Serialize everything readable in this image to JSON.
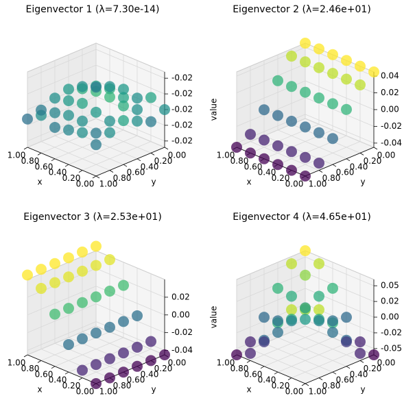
{
  "chart_data": [
    {
      "type": "scatter3d",
      "title": "Eigenvector 1 (λ=7.30e-14)",
      "xlabel": "x",
      "ylabel": "y",
      "zlabel": "value",
      "colormap": "viridis",
      "x": [
        0,
        0,
        0,
        0,
        0,
        0,
        0.2,
        0.2,
        0.2,
        0.2,
        0.2,
        0.2,
        0.4,
        0.4,
        0.4,
        0.4,
        0.4,
        0.4,
        0.6,
        0.6,
        0.6,
        0.6,
        0.6,
        0.6,
        0.8,
        0.8,
        0.8,
        0.8,
        0.8,
        0.8,
        1,
        1,
        1,
        1,
        1,
        1
      ],
      "y": [
        0,
        0.2,
        0.4,
        0.6,
        0.8,
        1,
        0,
        0.2,
        0.4,
        0.6,
        0.8,
        1,
        0,
        0.2,
        0.4,
        0.6,
        0.8,
        1,
        0,
        0.2,
        0.4,
        0.6,
        0.8,
        1,
        0,
        0.2,
        0.4,
        0.6,
        0.8,
        1,
        0,
        0.2,
        0.4,
        0.6,
        0.8,
        1
      ],
      "z": [
        -0.02236,
        -0.022362,
        -0.02236,
        -0.022358,
        -0.02236,
        -0.022362,
        -0.022358,
        -0.02236,
        -0.022357,
        -0.02236,
        -0.022362,
        -0.02236,
        -0.02236,
        -0.022358,
        -0.022356,
        -0.022359,
        -0.02236,
        -0.022361,
        -0.022359,
        -0.022357,
        -0.022356,
        -0.022358,
        -0.02236,
        -0.022362,
        -0.02236,
        -0.022358,
        -0.022357,
        -0.022359,
        -0.022361,
        -0.02236,
        -0.022362,
        -0.02236,
        -0.022359,
        -0.02236,
        -0.022362,
        -0.022363
      ],
      "xlim": [
        0,
        1
      ],
      "ylim": [
        0,
        1
      ],
      "zlim": [
        -0.022372,
        -0.022348
      ],
      "xticks": [
        {
          "value": 0,
          "label": "0.00"
        },
        {
          "value": 0.2,
          "label": "0.20"
        },
        {
          "value": 0.4,
          "label": "0.40"
        },
        {
          "value": 0.6,
          "label": "0.60"
        },
        {
          "value": 0.8,
          "label": "0.80"
        },
        {
          "value": 1,
          "label": "1.00"
        }
      ],
      "yticks": [
        {
          "value": 0,
          "label": "0.00"
        },
        {
          "value": 0.2,
          "label": "0.20"
        },
        {
          "value": 0.4,
          "label": "0.40"
        },
        {
          "value": 0.6,
          "label": "0.60"
        },
        {
          "value": 0.8,
          "label": "0.80"
        },
        {
          "value": 1,
          "label": "1.00"
        }
      ],
      "zticks": [
        {
          "value": -0.02237,
          "label": "-0.02"
        },
        {
          "value": -0.022365,
          "label": "-0.02"
        },
        {
          "value": -0.02236,
          "label": "-0.02"
        },
        {
          "value": -0.022355,
          "label": "-0.02"
        },
        {
          "value": -0.02235,
          "label": "-0.02"
        }
      ]
    },
    {
      "type": "scatter3d",
      "title": "Eigenvector 2 (λ=2.46e+01)",
      "xlabel": "x",
      "ylabel": "y",
      "colormap": "viridis",
      "x": [
        0,
        0,
        0,
        0,
        0,
        0,
        0.2,
        0.2,
        0.2,
        0.2,
        0.2,
        0.2,
        0.4,
        0.4,
        0.4,
        0.4,
        0.4,
        0.4,
        0.6,
        0.6,
        0.6,
        0.6,
        0.6,
        0.6,
        0.8,
        0.8,
        0.8,
        0.8,
        0.8,
        0.8,
        1,
        1,
        1,
        1,
        1,
        1
      ],
      "y": [
        0,
        0.2,
        0.4,
        0.6,
        0.8,
        1,
        0,
        0.2,
        0.4,
        0.6,
        0.8,
        1,
        0,
        0.2,
        0.4,
        0.6,
        0.8,
        1,
        0,
        0.2,
        0.4,
        0.6,
        0.8,
        1,
        0,
        0.2,
        0.4,
        0.6,
        0.8,
        1,
        0,
        0.2,
        0.4,
        0.6,
        0.8,
        1
      ],
      "z": [
        0.045,
        0.0364,
        0.0139,
        -0.0139,
        -0.0364,
        -0.045,
        0.045,
        0.0364,
        0.0139,
        -0.0139,
        -0.0364,
        -0.045,
        0.045,
        0.0364,
        0.0139,
        -0.0139,
        -0.0364,
        -0.045,
        0.045,
        0.0364,
        0.0139,
        -0.0139,
        -0.0364,
        -0.045,
        0.045,
        0.0364,
        0.0139,
        -0.0139,
        -0.0364,
        -0.045,
        0.045,
        0.0364,
        0.0139,
        -0.0139,
        -0.0364,
        -0.045
      ],
      "xlim": [
        0,
        1
      ],
      "ylim": [
        0,
        1
      ],
      "zlim": [
        -0.045,
        0.045
      ],
      "xticks": [
        {
          "value": 0,
          "label": "0.00"
        },
        {
          "value": 0.2,
          "label": "0.20"
        },
        {
          "value": 0.4,
          "label": "0.40"
        },
        {
          "value": 0.6,
          "label": "0.60"
        },
        {
          "value": 0.8,
          "label": "0.80"
        },
        {
          "value": 1,
          "label": "1.00"
        }
      ],
      "yticks": [
        {
          "value": 0,
          "label": "0.00"
        },
        {
          "value": 0.2,
          "label": "0.20"
        },
        {
          "value": 0.4,
          "label": "0.40"
        },
        {
          "value": 0.6,
          "label": "0.60"
        },
        {
          "value": 0.8,
          "label": "0.80"
        },
        {
          "value": 1,
          "label": "1.00"
        }
      ],
      "zticks": [
        {
          "value": -0.04,
          "label": "-0.04"
        },
        {
          "value": -0.02,
          "label": "-0.02"
        },
        {
          "value": 0,
          "label": "0.00"
        },
        {
          "value": 0.02,
          "label": "0.02"
        },
        {
          "value": 0.04,
          "label": "0.04"
        }
      ]
    },
    {
      "type": "scatter3d",
      "title": "Eigenvector 3 (λ=2.53e+01)",
      "xlabel": "x",
      "ylabel": "y",
      "zlabel": "value",
      "colormap": "viridis",
      "x": [
        0,
        0,
        0,
        0,
        0,
        0,
        0.2,
        0.2,
        0.2,
        0.2,
        0.2,
        0.2,
        0.4,
        0.4,
        0.4,
        0.4,
        0.4,
        0.4,
        0.6,
        0.6,
        0.6,
        0.6,
        0.6,
        0.6,
        0.8,
        0.8,
        0.8,
        0.8,
        0.8,
        0.8,
        1,
        1,
        1,
        1,
        1,
        1
      ],
      "y": [
        0,
        0.2,
        0.4,
        0.6,
        0.8,
        1,
        0,
        0.2,
        0.4,
        0.6,
        0.8,
        1,
        0,
        0.2,
        0.4,
        0.6,
        0.8,
        1,
        0,
        0.2,
        0.4,
        0.6,
        0.8,
        1,
        0,
        0.2,
        0.4,
        0.6,
        0.8,
        1,
        0,
        0.2,
        0.4,
        0.6,
        0.8,
        1
      ],
      "z": [
        -0.045,
        -0.045,
        -0.045,
        -0.045,
        -0.045,
        -0.045,
        -0.0364,
        -0.0364,
        -0.0364,
        -0.0364,
        -0.0364,
        -0.0364,
        -0.0139,
        -0.0139,
        -0.0139,
        -0.0139,
        -0.0139,
        -0.0139,
        0.0139,
        0.0139,
        0.0139,
        0.0139,
        0.0139,
        0.0139,
        0.0364,
        0.0364,
        0.0364,
        0.0364,
        0.0364,
        0.0364,
        0.045,
        0.045,
        0.045,
        0.045,
        0.045,
        0.045
      ],
      "xlim": [
        0,
        1
      ],
      "ylim": [
        0,
        1
      ],
      "zlim": [
        -0.045,
        0.04
      ],
      "xticks": [
        {
          "value": 0,
          "label": "0.00"
        },
        {
          "value": 0.2,
          "label": "0.20"
        },
        {
          "value": 0.4,
          "label": "0.40"
        },
        {
          "value": 0.6,
          "label": "0.60"
        },
        {
          "value": 0.8,
          "label": "0.80"
        },
        {
          "value": 1,
          "label": "1.00"
        }
      ],
      "yticks": [
        {
          "value": 0,
          "label": "0.00"
        },
        {
          "value": 0.2,
          "label": "0.20"
        },
        {
          "value": 0.4,
          "label": "0.40"
        },
        {
          "value": 0.6,
          "label": "0.60"
        },
        {
          "value": 0.8,
          "label": "0.80"
        },
        {
          "value": 1,
          "label": "1.00"
        }
      ],
      "zticks": [
        {
          "value": -0.04,
          "label": "-0.04"
        },
        {
          "value": -0.02,
          "label": "-0.02"
        },
        {
          "value": 0,
          "label": "0.00"
        },
        {
          "value": 0.02,
          "label": "0.02"
        }
      ]
    },
    {
      "type": "scatter3d",
      "title": "Eigenvector 4 (λ=4.65e+01)",
      "xlabel": "x",
      "ylabel": "y",
      "colormap": "viridis",
      "x": [
        0,
        0,
        0,
        0,
        0,
        0,
        0.2,
        0.2,
        0.2,
        0.2,
        0.2,
        0.2,
        0.4,
        0.4,
        0.4,
        0.4,
        0.4,
        0.4,
        0.6,
        0.6,
        0.6,
        0.6,
        0.6,
        0.6,
        0.8,
        0.8,
        0.8,
        0.8,
        0.8,
        0.8,
        1,
        1,
        1,
        1,
        1,
        1
      ],
      "y": [
        0,
        0.2,
        0.4,
        0.6,
        0.8,
        1,
        0,
        0.2,
        0.4,
        0.6,
        0.8,
        1,
        0,
        0.2,
        0.4,
        0.6,
        0.8,
        1,
        0,
        0.2,
        0.4,
        0.6,
        0.8,
        1,
        0,
        0.2,
        0.4,
        0.6,
        0.8,
        1,
        0,
        0.2,
        0.4,
        0.6,
        0.8,
        1
      ],
      "z": [
        -0.06,
        -0.0485,
        -0.0185,
        0.0185,
        0.0485,
        0.06,
        -0.0485,
        -0.0393,
        -0.015,
        0.015,
        0.0393,
        0.0485,
        -0.0185,
        -0.015,
        -0.0057,
        0.0057,
        0.015,
        0.0185,
        0.0185,
        0.015,
        0.0057,
        -0.0057,
        -0.015,
        -0.0185,
        0.0485,
        0.0393,
        0.015,
        -0.015,
        -0.0393,
        -0.0485,
        0.06,
        0.0485,
        0.0185,
        -0.0185,
        -0.0485,
        -0.06
      ],
      "xlim": [
        0,
        1
      ],
      "ylim": [
        0,
        1
      ],
      "zlim": [
        -0.06,
        0.06
      ],
      "xticks": [
        {
          "value": 0,
          "label": "0.00"
        },
        {
          "value": 0.2,
          "label": "0.20"
        },
        {
          "value": 0.4,
          "label": "0.40"
        },
        {
          "value": 0.6,
          "label": "0.60"
        },
        {
          "value": 0.8,
          "label": "0.80"
        },
        {
          "value": 1,
          "label": "1.00"
        }
      ],
      "yticks": [
        {
          "value": 0,
          "label": "0.00"
        },
        {
          "value": 0.2,
          "label": "0.20"
        },
        {
          "value": 0.4,
          "label": "0.40"
        },
        {
          "value": 0.6,
          "label": "0.60"
        },
        {
          "value": 0.8,
          "label": "0.80"
        },
        {
          "value": 1,
          "label": "1.00"
        }
      ],
      "zticks": [
        {
          "value": -0.05,
          "label": "-0.05"
        },
        {
          "value": -0.025,
          "label": "-0.02"
        },
        {
          "value": 0,
          "label": "0.00"
        },
        {
          "value": 0.025,
          "label": "0.02"
        },
        {
          "value": 0.05,
          "label": "0.05"
        }
      ]
    }
  ]
}
